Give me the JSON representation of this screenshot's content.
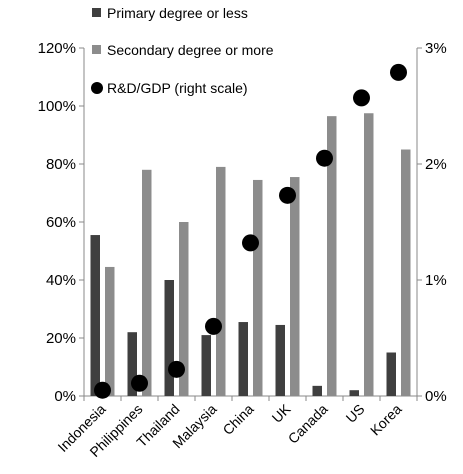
{
  "chart_data": {
    "type": "bar",
    "categories": [
      "Indonesia",
      "Philippines",
      "Thailand",
      "Malaysia",
      "China",
      "UK",
      "Canada",
      "US",
      "Korea"
    ],
    "series": [
      {
        "name": "Primary degree or less",
        "kind": "bar",
        "axis": "left",
        "color": "#3f3f3f",
        "values": [
          55.5,
          22,
          40,
          21,
          25.5,
          24.5,
          3.5,
          2,
          15
        ]
      },
      {
        "name": "Secondary degree or more",
        "kind": "bar",
        "axis": "left",
        "color": "#8c8c8c",
        "values": [
          44.5,
          78,
          60,
          79,
          74.5,
          75.5,
          96.5,
          97.5,
          85
        ]
      },
      {
        "name": "R&D/GDP (right scale)",
        "kind": "scatter",
        "axis": "right",
        "color": "#000000",
        "values": [
          0.05,
          0.11,
          0.23,
          0.6,
          1.32,
          1.73,
          2.05,
          2.57,
          2.79
        ]
      }
    ],
    "y_left": {
      "range": [
        0,
        120
      ],
      "ticks": [
        "0%",
        "20%",
        "40%",
        "60%",
        "80%",
        "100%",
        "120%"
      ]
    },
    "y_right": {
      "range": [
        0,
        3
      ],
      "ticks": [
        "0%",
        "1%",
        "2%",
        "3%"
      ]
    },
    "legend": "top-center",
    "grid": false
  }
}
